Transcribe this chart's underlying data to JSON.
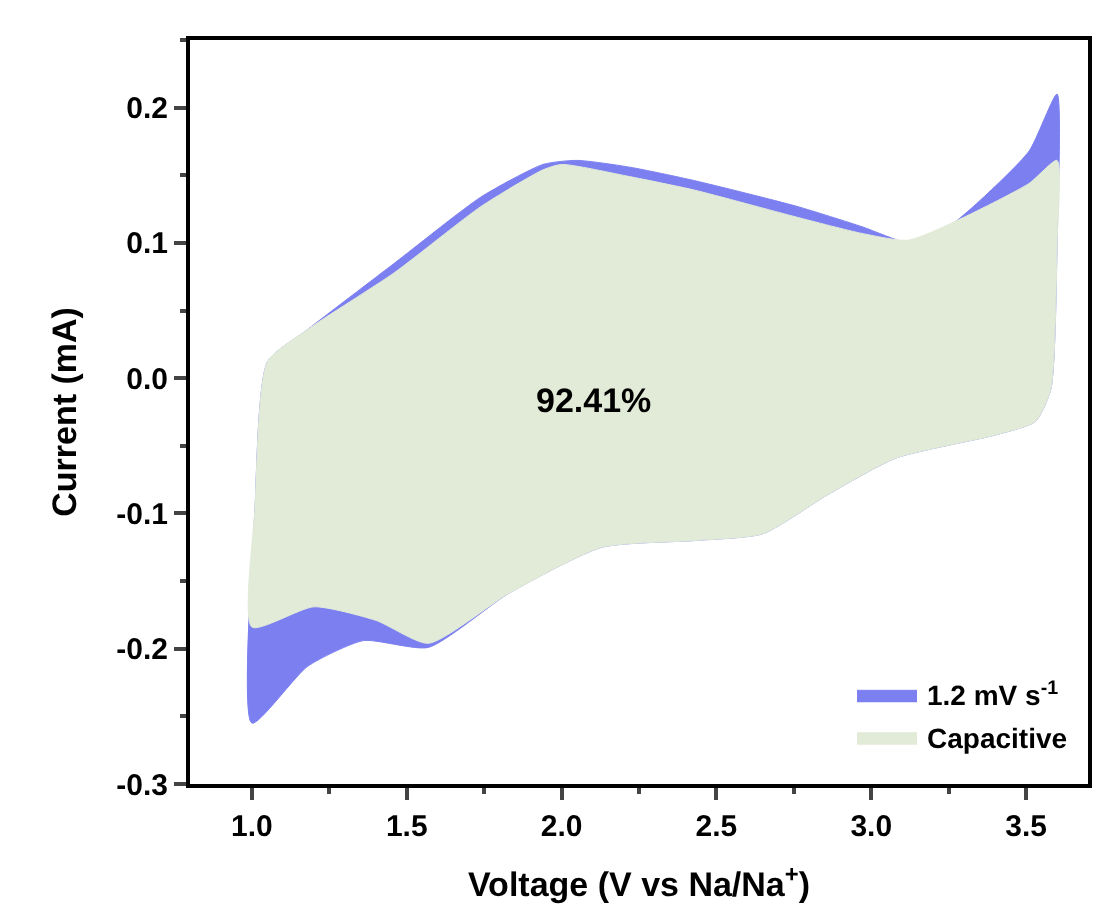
{
  "chart_data": {
    "type": "area",
    "xlabel": "Voltage (V vs Na/Na$^{+}$)",
    "ylabel": "Current (mA)",
    "xlim": [
      0.8,
      3.7
    ],
    "xticks": [
      {
        "value": 1,
        "label": "1.0"
      },
      1.5,
      {
        "value": 2,
        "label": "2.0"
      },
      2.5,
      {
        "value": 3,
        "label": "3.0"
      },
      3.5
    ],
    "ylim": [
      -0.3,
      0.25
    ],
    "yticks": [
      -0.3,
      -0.2,
      -0.1,
      {
        "value": 0,
        "label": "0.0"
      },
      0.1,
      0.2
    ],
    "legend": "bottom right",
    "annotations": [
      "92.41%"
    ],
    "series": [
      {
        "name": "1.2 mV s$^{-1}$",
        "color": "#7b7ff0",
        "x": [
          1.0,
          1.01,
          1.05,
          1.18,
          1.46,
          1.74,
          1.94,
          2.05,
          2.22,
          2.43,
          2.76,
          2.97,
          3.12,
          3.21,
          3.34,
          3.51,
          3.6,
          3.6,
          3.58,
          3.53,
          3.4,
          3.08,
          2.86,
          2.65,
          2.43,
          2.13,
          1.83,
          1.57,
          1.36,
          1.18,
          1.0
        ],
        "values": [
          -0.255,
          -0.096,
          0.012,
          0.036,
          0.085,
          0.134,
          0.158,
          0.161,
          0.156,
          0.146,
          0.127,
          0.112,
          0.1,
          0.105,
          0.129,
          0.168,
          0.21,
          0.1,
          -0.008,
          -0.032,
          -0.042,
          -0.059,
          -0.086,
          -0.115,
          -0.12,
          -0.125,
          -0.159,
          -0.199,
          -0.194,
          -0.213,
          -0.255
        ]
      },
      {
        "name": "Capacitive",
        "color": "#e2ebd8",
        "x": [
          1.0,
          1.01,
          1.05,
          1.18,
          1.46,
          1.74,
          1.94,
          2.0,
          2.22,
          2.43,
          2.76,
          2.97,
          3.12,
          3.3,
          3.51,
          3.6,
          3.6,
          3.58,
          3.53,
          3.4,
          3.08,
          2.86,
          2.65,
          2.43,
          2.13,
          1.83,
          1.57,
          1.4,
          1.2,
          1.0
        ],
        "values": [
          -0.184,
          -0.096,
          0.012,
          0.036,
          0.078,
          0.127,
          0.154,
          0.158,
          0.149,
          0.139,
          0.119,
          0.107,
          0.102,
          0.119,
          0.144,
          0.161,
          0.1,
          -0.008,
          -0.032,
          -0.042,
          -0.059,
          -0.086,
          -0.115,
          -0.12,
          -0.125,
          -0.159,
          -0.196,
          -0.179,
          -0.169,
          -0.184
        ]
      }
    ]
  }
}
